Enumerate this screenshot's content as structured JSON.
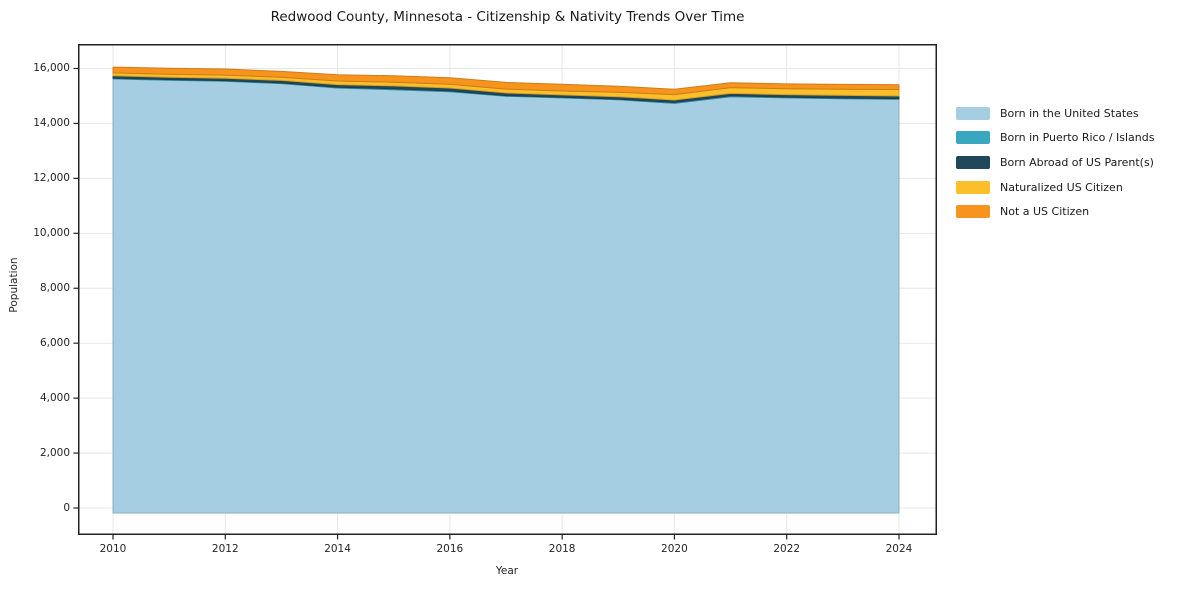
{
  "chart_data": {
    "type": "area",
    "stacked": true,
    "title": "Redwood County, Minnesota - Citizenship & Nativity Trends Over Time",
    "xlabel": "Year",
    "ylabel": "Population",
    "x": [
      2010,
      2011,
      2012,
      2013,
      2014,
      2015,
      2016,
      2017,
      2018,
      2019,
      2020,
      2021,
      2022,
      2023,
      2024
    ],
    "xticks": [
      2010,
      2012,
      2014,
      2016,
      2018,
      2020,
      2022,
      2024
    ],
    "yticks": [
      0,
      2000,
      4000,
      6000,
      8000,
      10000,
      12000,
      14000,
      16000
    ],
    "ytick_labels": [
      "0",
      "2,000",
      "4,000",
      "6,000",
      "8,000",
      "10,000",
      "12,000",
      "14,000",
      "16,000"
    ],
    "ylim": [
      0,
      16890
    ],
    "grid": true,
    "legend_position": "right",
    "series": [
      {
        "name": "Born in the United States",
        "color": "#a6cee3",
        "values": [
          15620,
          15570,
          15535,
          15450,
          15290,
          15230,
          15150,
          14990,
          14930,
          14860,
          14730,
          14970,
          14930,
          14900,
          14880
        ]
      },
      {
        "name": "Born in Puerto Rico / Islands",
        "color": "#39a7c0",
        "values": [
          30,
          28,
          25,
          25,
          30,
          35,
          35,
          25,
          20,
          25,
          35,
          35,
          30,
          25,
          25
        ]
      },
      {
        "name": "Born Abroad of US Parent(s)",
        "color": "#21485a",
        "values": [
          85,
          85,
          85,
          90,
          95,
          100,
          105,
          95,
          90,
          90,
          90,
          90,
          90,
          95,
          95
        ]
      },
      {
        "name": "Naturalized US Citizen",
        "color": "#fcbf2c",
        "values": [
          105,
          110,
          115,
          115,
          130,
          135,
          140,
          140,
          140,
          160,
          195,
          210,
          215,
          225,
          235
        ]
      },
      {
        "name": "Not a US Citizen",
        "color": "#f7941e",
        "values": [
          210,
          215,
          220,
          215,
          230,
          235,
          230,
          245,
          245,
          220,
          195,
          175,
          175,
          175,
          175
        ]
      }
    ]
  },
  "style": {
    "grid_color": "#e7e7e7",
    "spine_color": "#222222",
    "text_color": "#262626"
  }
}
